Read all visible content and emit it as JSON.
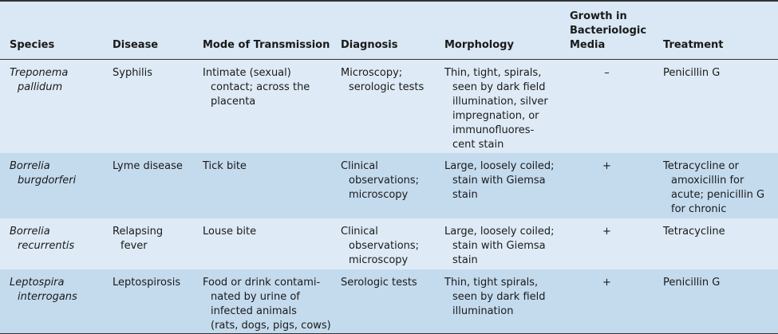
{
  "table": {
    "header": [
      [
        "Species"
      ],
      [
        "Disease"
      ],
      [
        "Mode of Transmission"
      ],
      [
        "Diagnosis"
      ],
      [
        "Morphology"
      ],
      [
        "Growth in",
        "Bacteriologic",
        "Media"
      ],
      [
        "Treatment"
      ]
    ],
    "rows": [
      [
        [
          "Treponema",
          "pallidum"
        ],
        [
          "Syphilis"
        ],
        [
          "Intimate (sexual)",
          "contact; across the",
          "placenta"
        ],
        [
          "Microscopy;",
          "serologic tests"
        ],
        [
          "Thin, tight, spirals,",
          "seen by dark field",
          "illumination, silver",
          "impregnation, or",
          "immunofluores-",
          "cent stain"
        ],
        [
          "–"
        ],
        [
          "Penicillin G"
        ]
      ],
      [
        [
          "Borrelia",
          "burgdorferi"
        ],
        [
          "Lyme disease"
        ],
        [
          "Tick bite"
        ],
        [
          "Clinical",
          "observations;",
          "microscopy"
        ],
        [
          "Large, loosely coiled;",
          "stain with Giemsa",
          "stain"
        ],
        [
          "+"
        ],
        [
          "Tetracycline or",
          "amoxicillin for",
          "acute; penicillin G",
          "for chronic"
        ]
      ],
      [
        [
          "Borrelia",
          "recurrentis"
        ],
        [
          "Relapsing",
          "fever"
        ],
        [
          "Louse bite"
        ],
        [
          "Clinical",
          "observations;",
          "microscopy"
        ],
        [
          "Large, loosely coiled;",
          "stain with Giemsa",
          "stain"
        ],
        [
          "+"
        ],
        [
          "Tetracycline"
        ]
      ],
      [
        [
          "Leptospira",
          "interrogans"
        ],
        [
          "Leptospirosis"
        ],
        [
          "Food or drink contami-",
          "nated by urine of",
          "infected animals",
          "(rats, dogs, pigs, cows)"
        ],
        [
          "Serologic tests"
        ],
        [
          "Thin, tight spirals,",
          "seen by dark field",
          "illumination"
        ],
        [
          "+"
        ],
        [
          "Penicillin G"
        ]
      ]
    ]
  }
}
